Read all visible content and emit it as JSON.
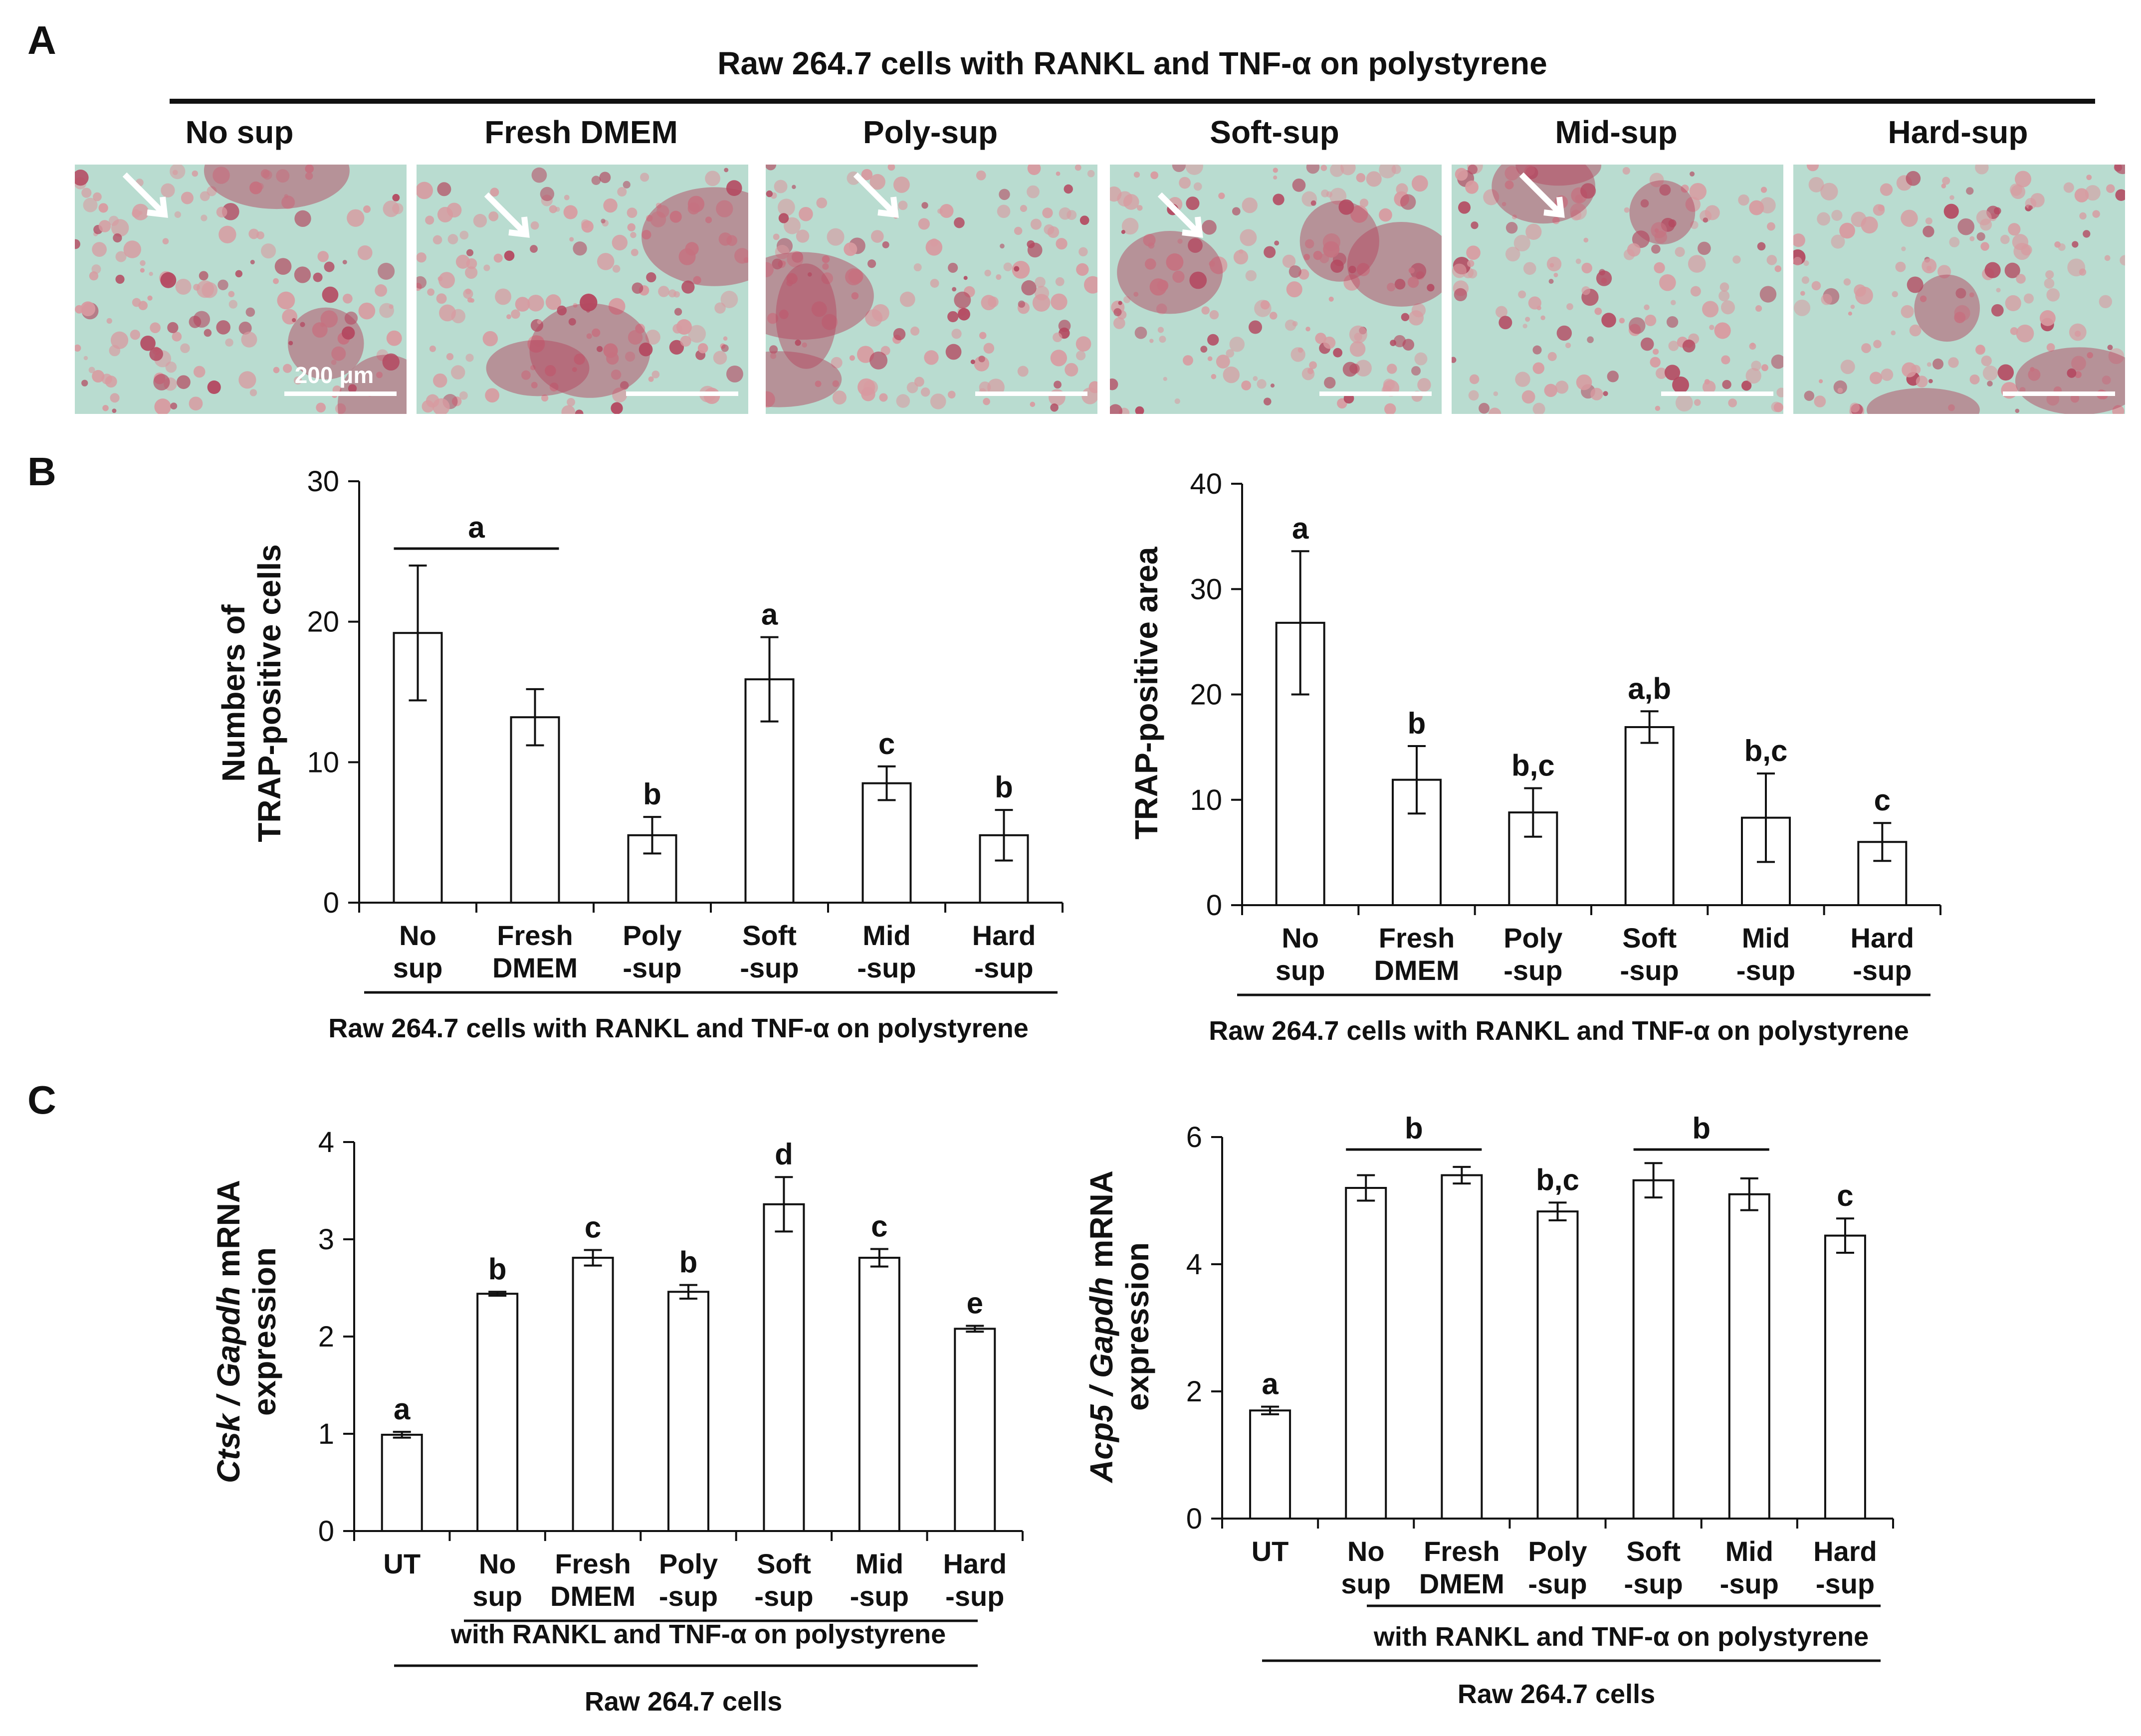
{
  "panels": {
    "A": "A",
    "B": "B",
    "C": "C"
  },
  "micrographs": {
    "title": "Raw 264.7 cells with RANKL and TNF-α on polystyrene",
    "labels": [
      "No sup",
      "Fresh DMEM",
      "Poly-sup",
      "Soft-sup",
      "Mid-sup",
      "Hard-sup"
    ],
    "scale_bar": "200 μm",
    "colors": {
      "background": "#b9dcd0",
      "stain": "#b4475f",
      "debris": "#d89aa0"
    }
  },
  "chart_data": [
    {
      "type": "bar",
      "id": "B1",
      "categories": [
        [
          "No",
          "sup"
        ],
        [
          "Fresh",
          "DMEM"
        ],
        [
          "Poly",
          "-sup"
        ],
        [
          "Soft",
          "-sup"
        ],
        [
          "Mid",
          "-sup"
        ],
        [
          "Hard",
          "-sup"
        ]
      ],
      "values": [
        19.2,
        13.2,
        4.8,
        15.9,
        8.5,
        4.8
      ],
      "errors": [
        4.8,
        2.0,
        1.3,
        3.0,
        1.2,
        1.8
      ],
      "letters": [
        "",
        "",
        "b",
        "a",
        "c",
        "b"
      ],
      "bracket": {
        "from": 0,
        "to": 1,
        "label": "a"
      },
      "ylabel": [
        "Numbers of",
        "TRAP-positive cells"
      ],
      "ylim": [
        0,
        30
      ],
      "yticks": [
        0,
        10,
        20,
        30
      ],
      "group_label": "Raw 264.7 cells with RANKL and TNF-α on polystyrene"
    },
    {
      "type": "bar",
      "id": "B2",
      "categories": [
        [
          "No",
          "sup"
        ],
        [
          "Fresh",
          "DMEM"
        ],
        [
          "Poly",
          "-sup"
        ],
        [
          "Soft",
          "-sup"
        ],
        [
          "Mid",
          "-sup"
        ],
        [
          "Hard",
          "-sup"
        ]
      ],
      "values": [
        26.8,
        11.9,
        8.8,
        16.9,
        8.3,
        6.0
      ],
      "errors": [
        6.8,
        3.2,
        2.3,
        1.5,
        4.2,
        1.8
      ],
      "letters": [
        "a",
        "b",
        "b,c",
        "a,b",
        "b,c",
        "c"
      ],
      "ylabel": [
        "TRAP-positive area"
      ],
      "ylim": [
        0,
        40
      ],
      "yticks": [
        0,
        10,
        20,
        30,
        40
      ],
      "group_label": "Raw 264.7 cells with RANKL and TNF-α on polystyrene"
    },
    {
      "type": "bar",
      "id": "C1",
      "categories": [
        [
          "UT"
        ],
        [
          "No",
          "sup"
        ],
        [
          "Fresh",
          "DMEM"
        ],
        [
          "Poly",
          "-sup"
        ],
        [
          "Soft",
          "-sup"
        ],
        [
          "Mid",
          "-sup"
        ],
        [
          "Hard",
          "-sup"
        ]
      ],
      "values": [
        0.99,
        2.44,
        2.81,
        2.46,
        3.36,
        2.81,
        2.08
      ],
      "errors": [
        0.03,
        0.02,
        0.08,
        0.07,
        0.28,
        0.09,
        0.03
      ],
      "letters": [
        "a",
        "b",
        "c",
        "b",
        "d",
        "c",
        "e"
      ],
      "ylabel_gene": "Ctsk",
      "ylabel_rest": "mRNA",
      "ylabel_line2": "expression",
      "ylim": [
        0,
        4
      ],
      "yticks": [
        0,
        1,
        2,
        3,
        4
      ],
      "group_label": "with RANKL and TNF-α on polystyrene",
      "outer_label": "Raw 264.7 cells"
    },
    {
      "type": "bar",
      "id": "C2",
      "categories": [
        [
          "UT"
        ],
        [
          "No",
          "sup"
        ],
        [
          "Fresh",
          "DMEM"
        ],
        [
          "Poly",
          "-sup"
        ],
        [
          "Soft",
          "-sup"
        ],
        [
          "Mid",
          "-sup"
        ],
        [
          "Hard",
          "-sup"
        ]
      ],
      "values": [
        1.7,
        5.2,
        5.4,
        4.83,
        5.32,
        5.1,
        4.45
      ],
      "errors": [
        0.06,
        0.2,
        0.13,
        0.14,
        0.27,
        0.25,
        0.27
      ],
      "letters": [
        "a",
        "",
        "",
        "b,c",
        "",
        "",
        "c"
      ],
      "brackets": [
        {
          "from": 1,
          "to": 2,
          "label": "b"
        },
        {
          "from": 4,
          "to": 5,
          "label": "b"
        }
      ],
      "ylabel_gene": "Acp5",
      "ylabel_rest": "mRNA",
      "ylabel_line2": "expression",
      "ylim": [
        0,
        6
      ],
      "yticks": [
        0,
        2,
        4,
        6
      ],
      "group_label": "with RANKL and TNF-α on polystyrene",
      "outer_label": "Raw 264.7 cells"
    }
  ]
}
